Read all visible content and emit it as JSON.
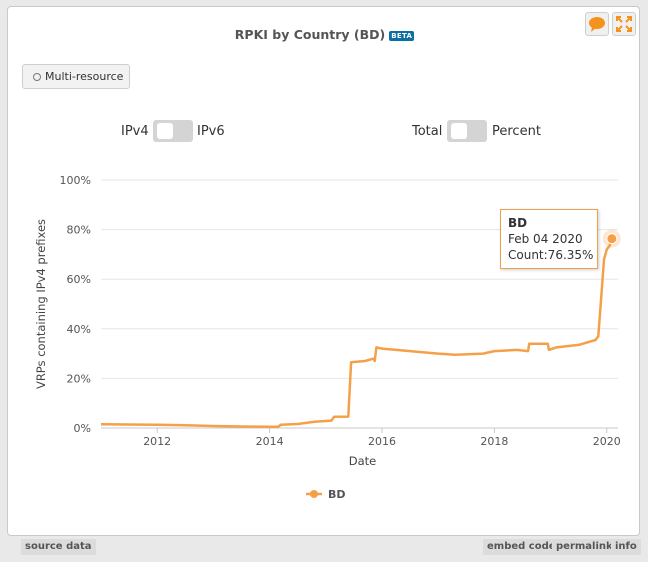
{
  "title": "RPKI by Country (BD)",
  "beta_badge": "BETA",
  "header_icons": [
    "speech-bubble-icon",
    "expand-icon"
  ],
  "accent_color": "#f5a048",
  "multi_resource_label": "Multi-resource",
  "toggles": {
    "ip": {
      "left": "IPv4",
      "right": "IPv6"
    },
    "mode": {
      "left": "Total",
      "right": "Percent"
    }
  },
  "tooltip": {
    "name": "BD",
    "date": "Feb 04 2020",
    "count": "Count:76.35%"
  },
  "footer": {
    "source": "source data",
    "embed": "embed code",
    "permalink": "permalink",
    "info": "info"
  },
  "chart_data": {
    "type": "line",
    "title": "RPKI by Country (BD)",
    "xlabel": "Date",
    "ylabel": "VRPs containing IPv4 prefixes",
    "x_ticks": [
      "2012",
      "2014",
      "2016",
      "2018",
      "2020"
    ],
    "y_ticks": [
      "0%",
      "20%",
      "40%",
      "60%",
      "80%",
      "100%"
    ],
    "ylim": [
      0,
      100
    ],
    "xlim": [
      2011.0,
      2020.2
    ],
    "grid": true,
    "legend": "bottom-center",
    "series": [
      {
        "name": "BD",
        "color": "#f5a048",
        "points": [
          [
            2011.0,
            1.5
          ],
          [
            2011.5,
            1.4
          ],
          [
            2012.0,
            1.3
          ],
          [
            2012.5,
            1.1
          ],
          [
            2013.0,
            0.8
          ],
          [
            2013.5,
            0.6
          ],
          [
            2014.0,
            0.5
          ],
          [
            2014.15,
            0.5
          ],
          [
            2014.2,
            1.3
          ],
          [
            2014.5,
            1.6
          ],
          [
            2014.8,
            2.5
          ],
          [
            2015.1,
            3.0
          ],
          [
            2015.15,
            4.5
          ],
          [
            2015.4,
            4.6
          ],
          [
            2015.45,
            26.5
          ],
          [
            2015.7,
            27.0
          ],
          [
            2015.85,
            28.0
          ],
          [
            2015.87,
            27.0
          ],
          [
            2015.9,
            32.5
          ],
          [
            2016.0,
            32.0
          ],
          [
            2016.5,
            31.0
          ],
          [
            2017.0,
            30.0
          ],
          [
            2017.3,
            29.5
          ],
          [
            2017.8,
            30.0
          ],
          [
            2018.0,
            31.0
          ],
          [
            2018.4,
            31.5
          ],
          [
            2018.6,
            31.0
          ],
          [
            2018.62,
            34.0
          ],
          [
            2018.95,
            34.0
          ],
          [
            2018.97,
            31.5
          ],
          [
            2019.1,
            32.5
          ],
          [
            2019.5,
            33.5
          ],
          [
            2019.8,
            35.5
          ],
          [
            2019.85,
            37.0
          ],
          [
            2019.9,
            52.0
          ],
          [
            2019.95,
            68.0
          ],
          [
            2020.0,
            72.0
          ],
          [
            2020.05,
            73.5
          ],
          [
            2020.09,
            76.35
          ]
        ]
      }
    ]
  }
}
